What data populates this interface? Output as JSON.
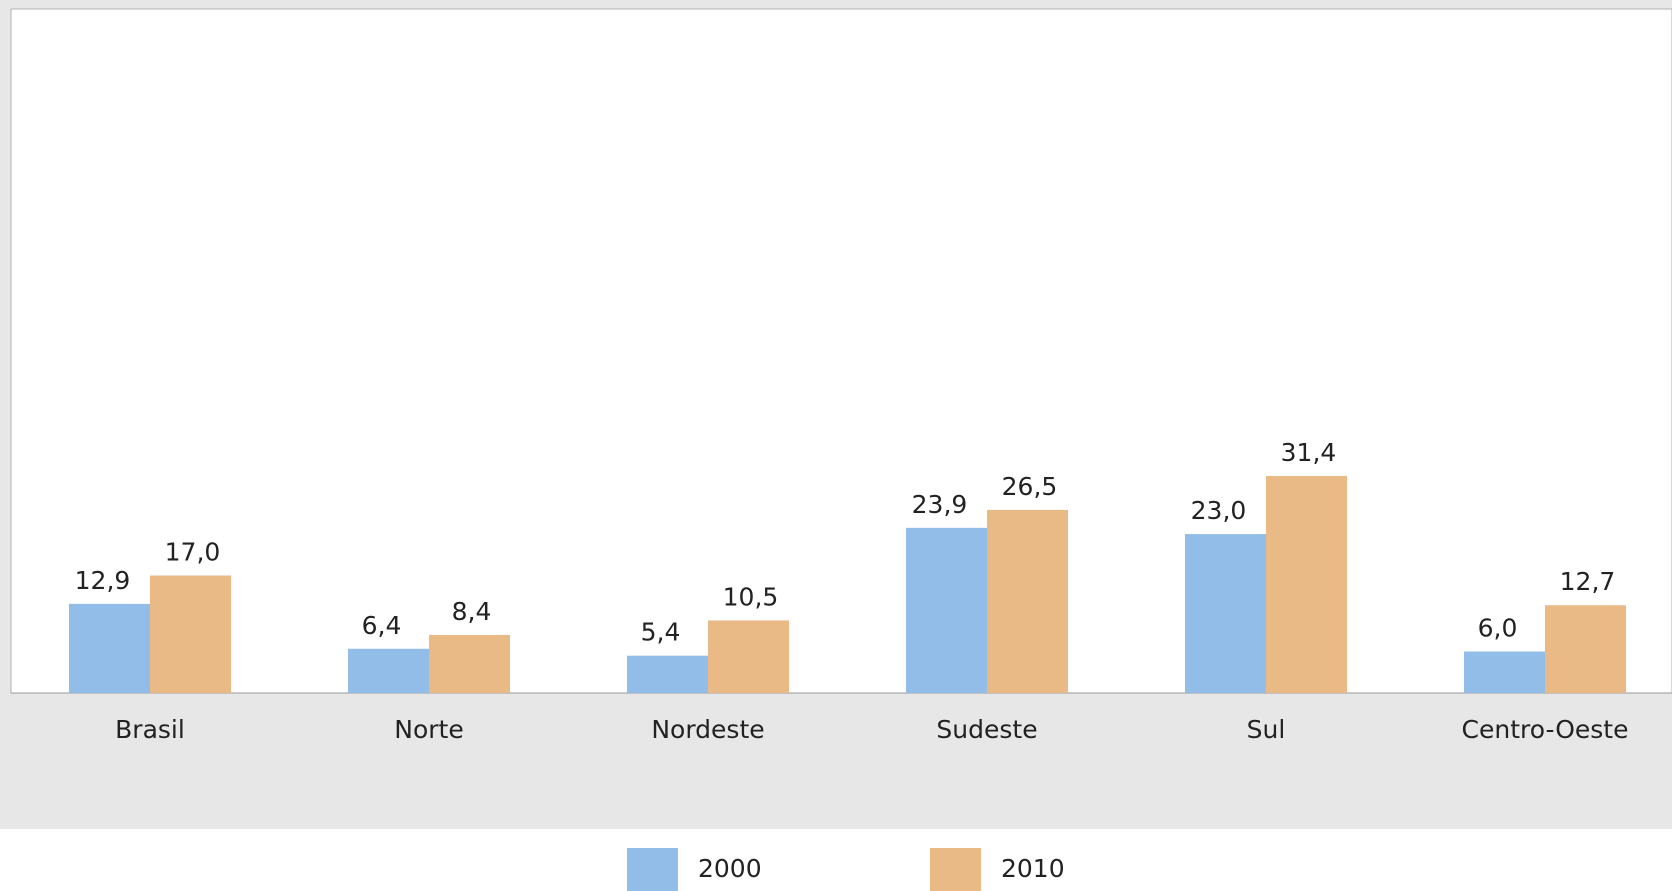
{
  "chart_data": {
    "type": "bar",
    "categories": [
      "Brasil",
      "Norte",
      "Nordeste",
      "Sudeste",
      "Sul",
      "Centro-Oeste"
    ],
    "series": [
      {
        "name": "2000",
        "color": "#92bde8",
        "values": [
          12.9,
          6.4,
          5.4,
          23.9,
          23.0,
          6.0
        ],
        "value_labels": [
          "12,9",
          "6,4",
          "5,4",
          "23,9",
          "23,0",
          "6,0"
        ]
      },
      {
        "name": "2010",
        "color": "#e9b986",
        "values": [
          17.0,
          8.4,
          10.5,
          26.5,
          31.4,
          12.7
        ],
        "value_labels": [
          "17,0",
          "8,4",
          "10,5",
          "26,5",
          "31,4",
          "12,7"
        ]
      }
    ],
    "ylim": [
      0,
      100
    ]
  }
}
